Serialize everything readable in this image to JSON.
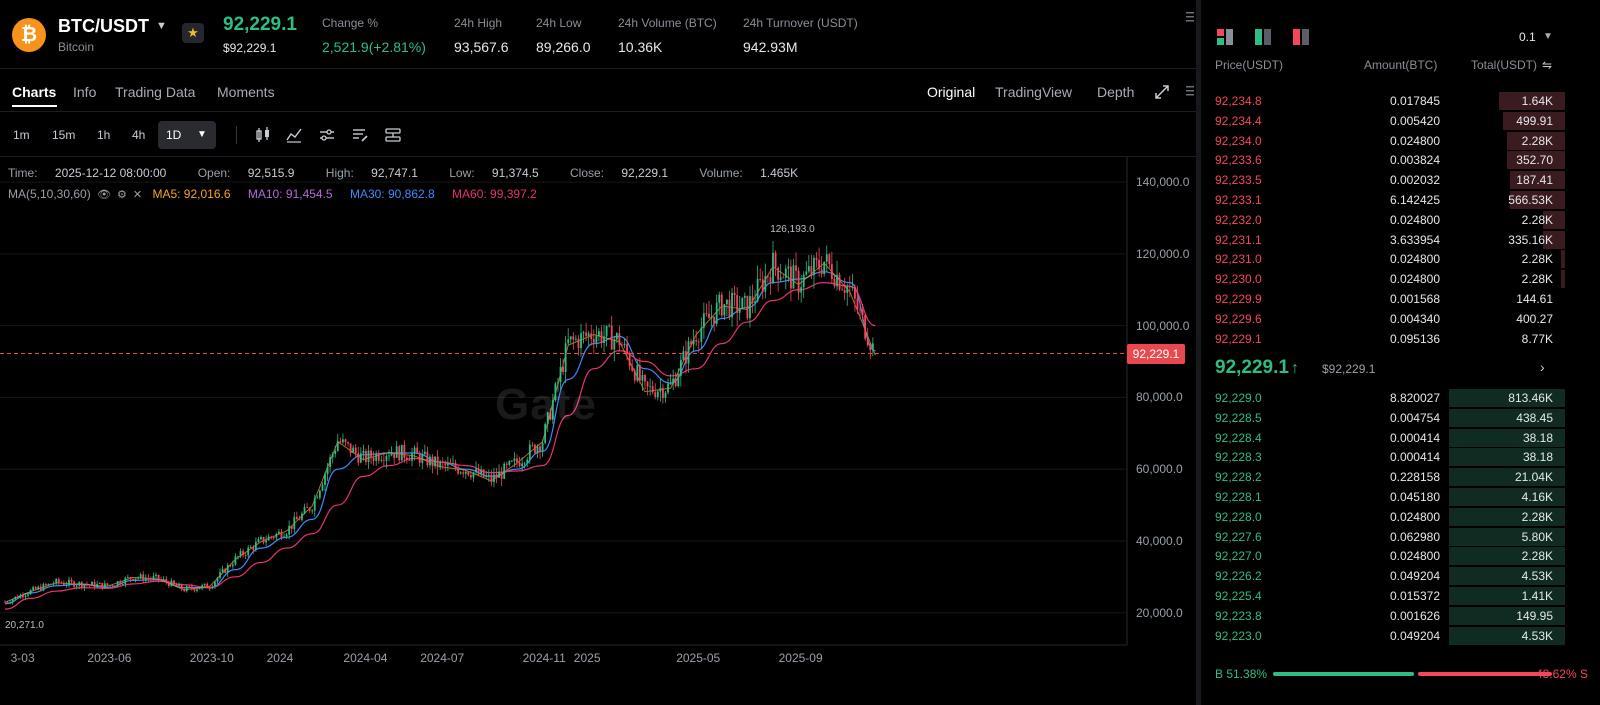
{
  "header": {
    "coin_icon": "bitcoin-icon",
    "coin_glyph": "₿",
    "pair": "BTC/USDT",
    "coin_name": "Bitcoin",
    "last_price": "92,229.1",
    "last_price_usd": "$92,229.1",
    "stats": [
      {
        "label": "Change %",
        "value": "2,521.9(+2.81%)"
      },
      {
        "label": "24h High",
        "value": "93,567.6"
      },
      {
        "label": "24h Low",
        "value": "89,266.0"
      },
      {
        "label": "24h Volume (BTC)",
        "value": "10.36K"
      },
      {
        "label": "24h Turnover (USDT)",
        "value": "942.93M"
      }
    ]
  },
  "tabs": [
    "Charts",
    "Info",
    "Trading Data",
    "Moments"
  ],
  "view_tabs": [
    "Original",
    "TradingView",
    "Depth"
  ],
  "timeframes": [
    "1m",
    "15m",
    "1h",
    "4h",
    "1D"
  ],
  "legend": {
    "time_label": "Time:",
    "time": "2025-12-12 08:00:00",
    "open_label": "Open:",
    "open": "92,515.9",
    "high_label": "High:",
    "high": "92,747.1",
    "low_label": "Low:",
    "low": "91,374.5",
    "close_label": "Close:",
    "close": "92,229.1",
    "volume_label": "Volume:",
    "volume": "1.465K"
  },
  "ma": {
    "label": "MA(5,10,30,60)",
    "ma5": "MA5: 92,016.6",
    "ma10": "MA10: 91,454.5",
    "ma30": "MA30: 90,862.8",
    "ma60": "MA60: 99,397.2"
  },
  "colors": {
    "up": "#2ebd85",
    "down": "#f6465d",
    "ma5": "#f5a623",
    "ma10": "#b36bd6",
    "ma30": "#3d8bfd",
    "ma60": "#e8326c"
  },
  "watermark": "Gate",
  "chart_data": {
    "type": "line",
    "title": "",
    "xlabel": "",
    "ylabel": "",
    "y_tick_labels": [
      "140,000.0",
      "120,000.0",
      "100,000.0",
      "80,000.0",
      "60,000.0",
      "40,000.0",
      "20,000.0"
    ],
    "y_ticks": [
      140000,
      120000,
      100000,
      80000,
      60000,
      40000,
      20000
    ],
    "ylim": [
      11000,
      147000
    ],
    "x_tick_labels": [
      "3-03",
      "2023-06",
      "2023-10",
      "2024",
      "2024-04",
      "2024-07",
      "2024-11",
      "2025",
      "2025-05",
      "2025-09"
    ],
    "x_ticks": [
      "2023-03",
      "2023-06",
      "2023-10",
      "2024-01",
      "2024-04",
      "2024-07",
      "2024-11",
      "2025-01",
      "2025-05",
      "2025-09"
    ],
    "x": [
      "2023-02",
      "2023-03",
      "2023-04",
      "2023-05",
      "2023-06",
      "2023-07",
      "2023-08",
      "2023-09",
      "2023-10",
      "2023-11",
      "2023-12",
      "2024-01",
      "2024-02",
      "2024-03",
      "2024-04",
      "2024-05",
      "2024-06",
      "2024-07",
      "2024-08",
      "2024-09",
      "2024-10",
      "2024-11",
      "2024-12",
      "2025-01",
      "2025-02",
      "2025-03",
      "2025-04",
      "2025-05",
      "2025-06",
      "2025-07",
      "2025-08",
      "2025-09",
      "2025-10",
      "2025-11",
      "2025-12"
    ],
    "series": [
      {
        "values": [
          23000,
          26000,
          28500,
          28000,
          27500,
          30000,
          29500,
          26500,
          27500,
          35000,
          40000,
          43000,
          50000,
          68000,
          63000,
          65000,
          64000,
          61000,
          60000,
          57000,
          62000,
          68000,
          95000,
          98000,
          96000,
          82000,
          83000,
          98000,
          106000,
          105000,
          117000,
          112000,
          118000,
          110000,
          92229
        ]
      },
      {
        "values": [
          22500,
          25500,
          27500,
          28000,
          27000,
          29000,
          29200,
          27000,
          27000,
          32000,
          38000,
          41000,
          46000,
          60000,
          64000,
          64500,
          64500,
          62000,
          60000,
          58000,
          60000,
          65000,
          85000,
          95000,
          97000,
          88000,
          84000,
          93000,
          102000,
          105000,
          112000,
          113000,
          115000,
          112000,
          93000
        ]
      },
      {
        "values": [
          21000,
          24000,
          26000,
          27000,
          26800,
          28000,
          28800,
          27800,
          27000,
          30000,
          34000,
          38000,
          42000,
          50000,
          58000,
          61000,
          63000,
          62000,
          61000,
          59000,
          59500,
          61000,
          75000,
          88000,
          93000,
          90000,
          86000,
          88000,
          95000,
          101000,
          107000,
          110000,
          112000,
          111000,
          100000
        ]
      }
    ],
    "current_price_line": 92229.1,
    "current_price_label": "92,229.1",
    "annotations": [
      {
        "text": "126,193.0",
        "x": "2025-10",
        "y": 126193
      },
      {
        "text": "20,271.0",
        "x": "2023-03",
        "y": 20271
      }
    ]
  },
  "orderbook": {
    "step": "0.1",
    "headers": {
      "price": "Price(USDT)",
      "amount": "Amount(BTC)",
      "total": "Total(USDT)"
    },
    "asks": [
      {
        "price": "92,234.8",
        "amount": "0.017845",
        "total": "1.64K",
        "depth": 0.18
      },
      {
        "price": "92,234.4",
        "amount": "0.005420",
        "total": "499.91",
        "depth": 0.17
      },
      {
        "price": "92,234.0",
        "amount": "0.024800",
        "total": "2.28K",
        "depth": 0.16
      },
      {
        "price": "92,233.6",
        "amount": "0.003824",
        "total": "352.70",
        "depth": 0.16
      },
      {
        "price": "92,233.5",
        "amount": "0.002032",
        "total": "187.41",
        "depth": 0.15
      },
      {
        "price": "92,233.1",
        "amount": "6.142425",
        "total": "566.53K",
        "depth": 0.15
      },
      {
        "price": "92,232.0",
        "amount": "0.024800",
        "total": "2.28K",
        "depth": 0.06
      },
      {
        "price": "92,231.1",
        "amount": "3.633954",
        "total": "335.16K",
        "depth": 0.06
      },
      {
        "price": "92,231.0",
        "amount": "0.024800",
        "total": "2.28K",
        "depth": 0.01
      },
      {
        "price": "92,230.0",
        "amount": "0.024800",
        "total": "2.28K",
        "depth": 0.01
      },
      {
        "price": "92,229.9",
        "amount": "0.001568",
        "total": "144.61",
        "depth": 0.0
      },
      {
        "price": "92,229.6",
        "amount": "0.004340",
        "total": "400.27",
        "depth": 0.0
      },
      {
        "price": "92,229.1",
        "amount": "0.095136",
        "total": "8.77K",
        "depth": 0.0
      }
    ],
    "mid_price": "92,229.1",
    "mid_arrow": "↑",
    "mid_usd": "$92,229.1",
    "bids": [
      {
        "price": "92,229.0",
        "amount": "8.820027",
        "total": "813.46K",
        "depth": 0.32
      },
      {
        "price": "92,228.5",
        "amount": "0.004754",
        "total": "438.45",
        "depth": 0.32
      },
      {
        "price": "92,228.4",
        "amount": "0.000414",
        "total": "38.18",
        "depth": 0.32
      },
      {
        "price": "92,228.3",
        "amount": "0.000414",
        "total": "38.18",
        "depth": 0.32
      },
      {
        "price": "92,228.2",
        "amount": "0.228158",
        "total": "21.04K",
        "depth": 0.32
      },
      {
        "price": "92,228.1",
        "amount": "0.045180",
        "total": "4.16K",
        "depth": 0.32
      },
      {
        "price": "92,228.0",
        "amount": "0.024800",
        "total": "2.28K",
        "depth": 0.32
      },
      {
        "price": "92,227.6",
        "amount": "0.062980",
        "total": "5.80K",
        "depth": 0.32
      },
      {
        "price": "92,227.0",
        "amount": "0.024800",
        "total": "2.28K",
        "depth": 0.32
      },
      {
        "price": "92,226.2",
        "amount": "0.049204",
        "total": "4.53K",
        "depth": 0.32
      },
      {
        "price": "92,225.4",
        "amount": "0.015372",
        "total": "1.41K",
        "depth": 0.32
      },
      {
        "price": "92,223.8",
        "amount": "0.001626",
        "total": "149.95",
        "depth": 0.32
      },
      {
        "price": "92,223.0",
        "amount": "0.049204",
        "total": "4.53K",
        "depth": 0.32
      }
    ],
    "buy_ratio_label": "B 51.38%",
    "sell_ratio_label": "48.62% S",
    "buy_ratio": 0.5138
  }
}
